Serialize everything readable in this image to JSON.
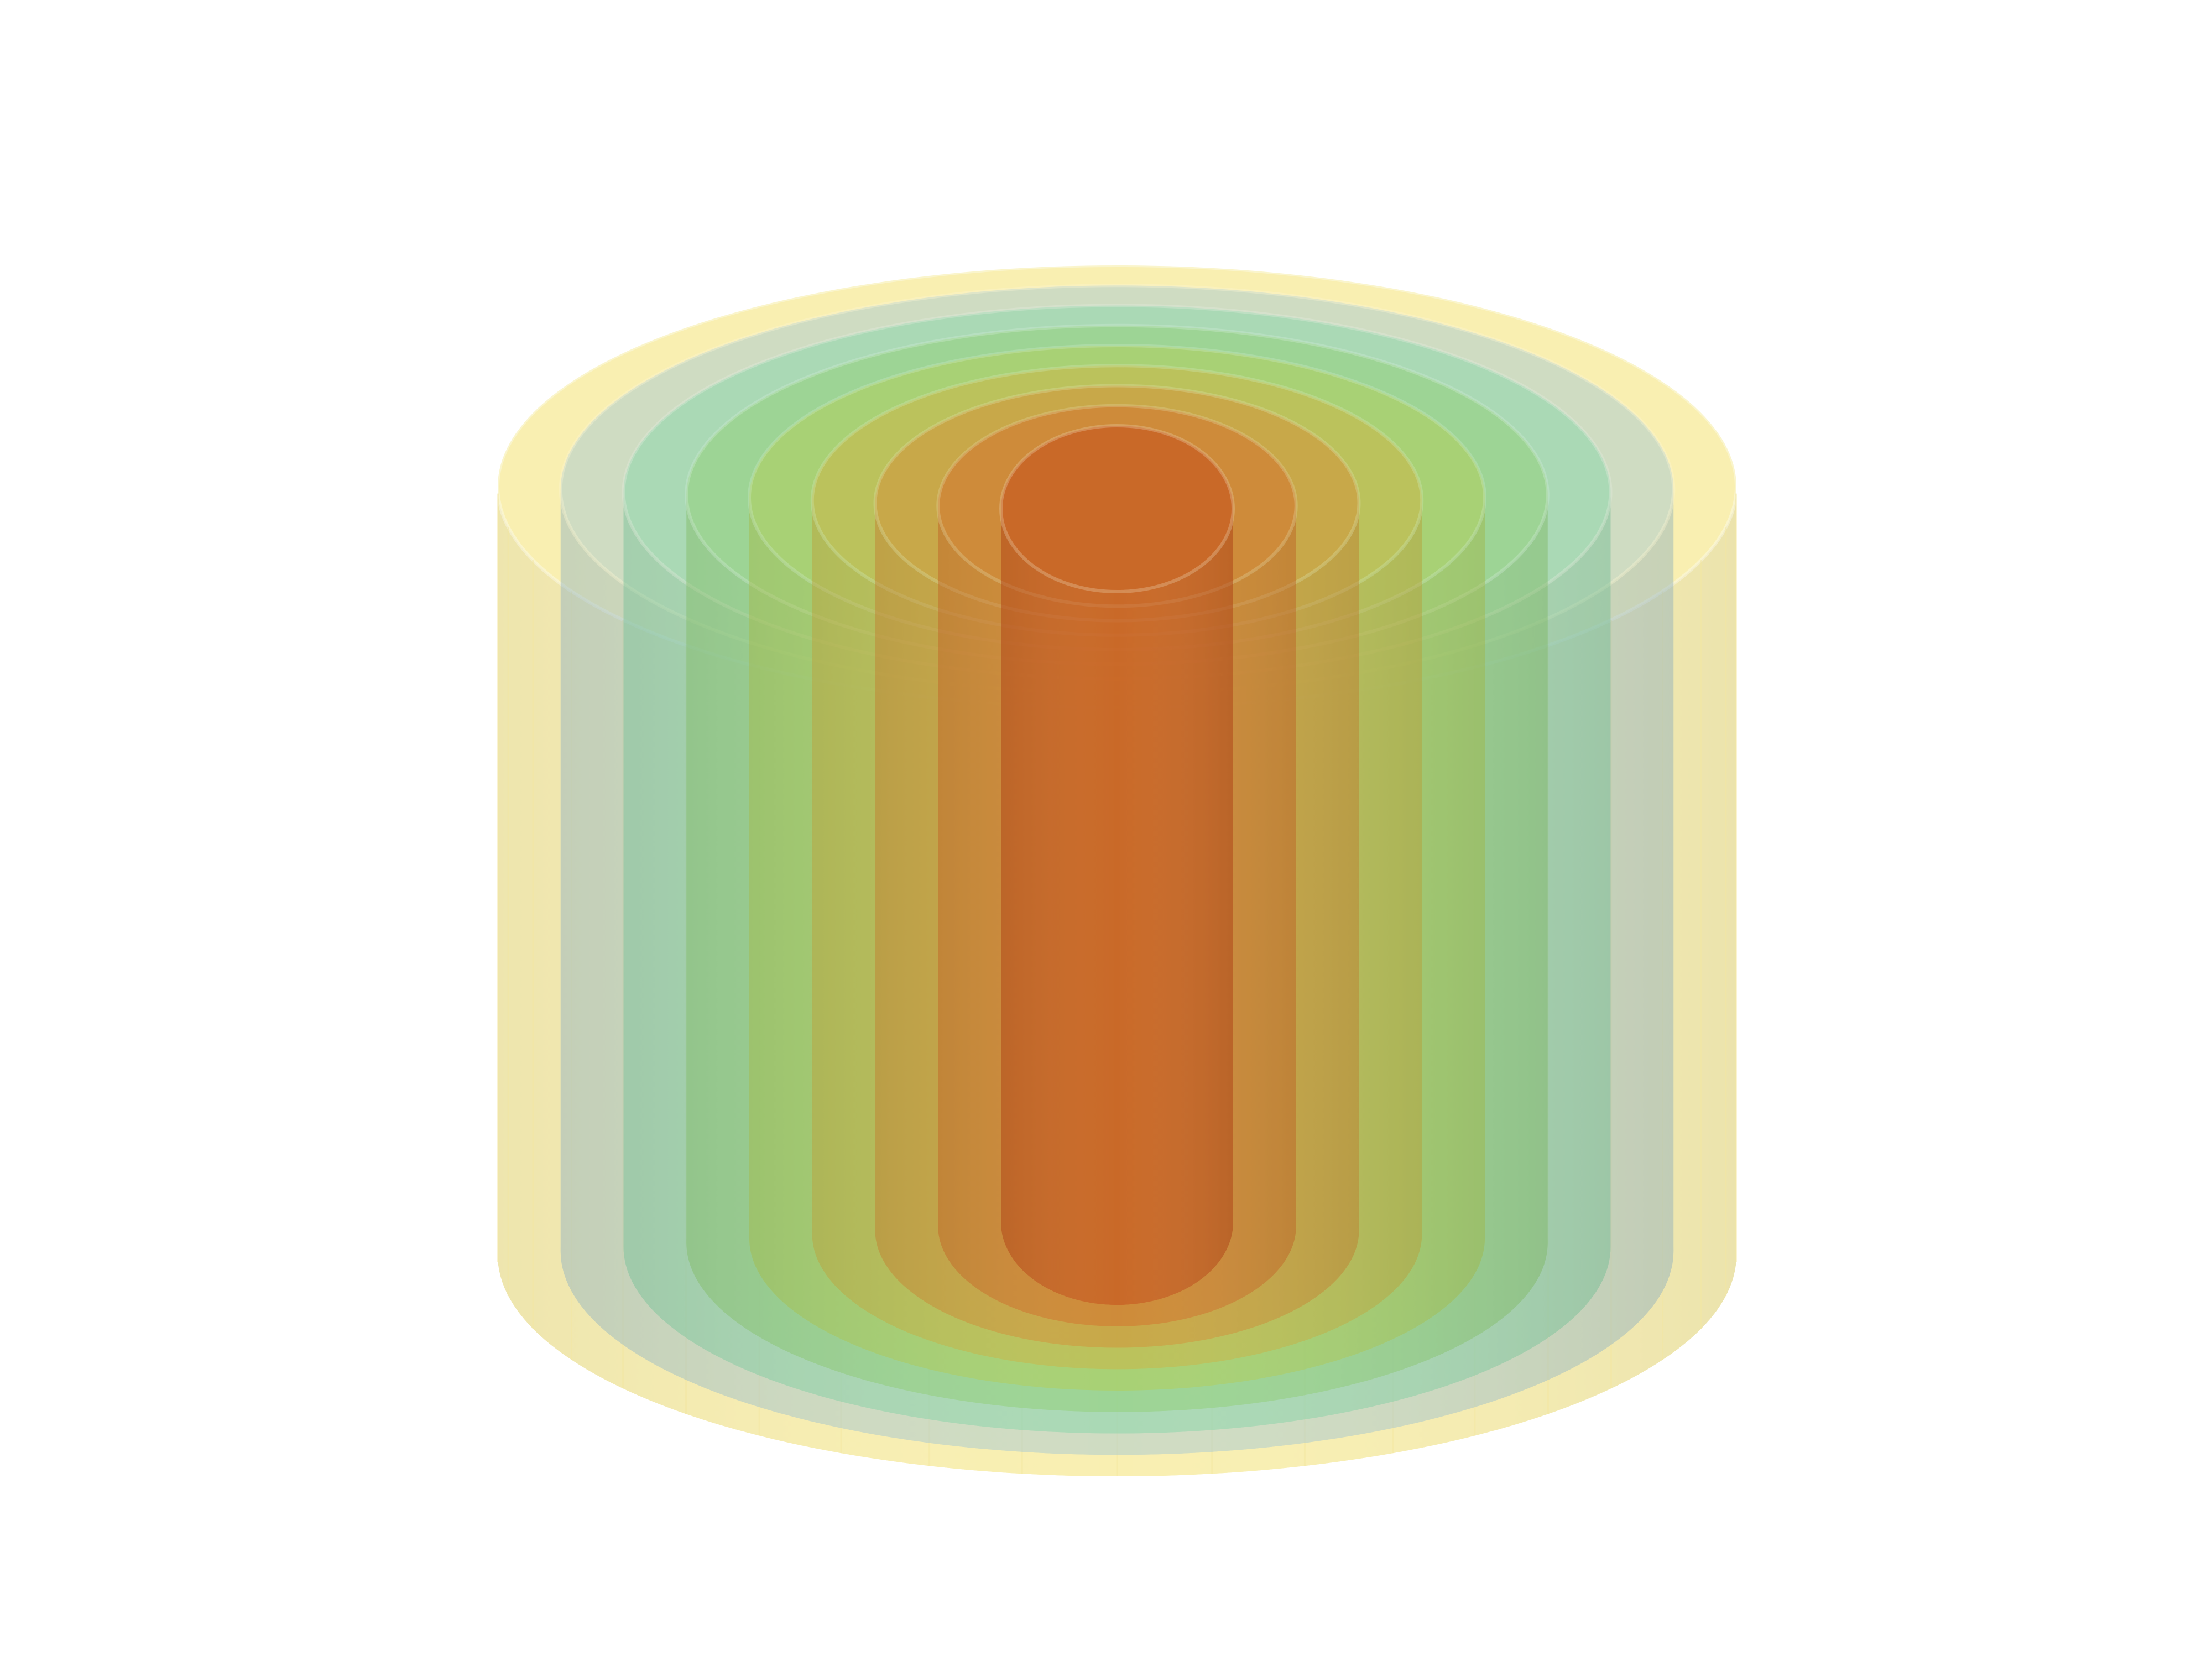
{
  "scene": {
    "background": "#ffffff",
    "object": "nested-isosurface-cylinders",
    "shells": [
      {
        "name": "outer-shell",
        "color": "#f2dd55",
        "opacity": 0.45
      },
      {
        "name": "shell-2",
        "color": "#9ec6d8",
        "opacity": 0.45
      },
      {
        "name": "shell-3",
        "color": "#7fd6a6",
        "opacity": 0.45
      },
      {
        "name": "shell-4",
        "color": "#8fd06f",
        "opacity": 0.45
      },
      {
        "name": "shell-5",
        "color": "#b7cf4f",
        "opacity": 0.45
      },
      {
        "name": "shell-6",
        "color": "#d2b23f",
        "opacity": 0.45
      },
      {
        "name": "shell-7",
        "color": "#d98a33",
        "opacity": 0.45
      },
      {
        "name": "shell-8",
        "color": "#d66a28",
        "opacity": 0.45
      },
      {
        "name": "core",
        "color": "#c64f1b",
        "opacity": 0.55
      }
    ]
  }
}
